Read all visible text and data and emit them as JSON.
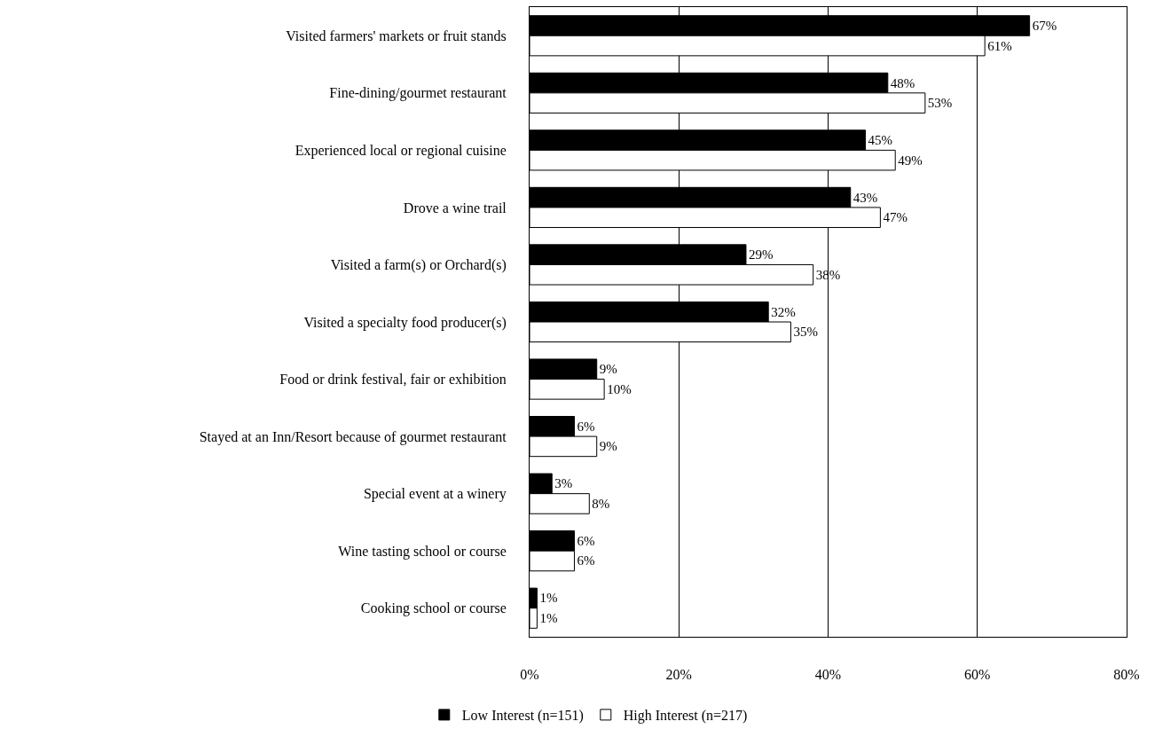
{
  "chart_data": {
    "type": "bar",
    "orientation": "horizontal",
    "categories": [
      "Visited farmers' markets or fruit stands",
      "Fine-dining/gourmet restaurant",
      "Experienced local or regional cuisine",
      "Drove a wine trail",
      "Visited a farm(s) or Orchard(s)",
      "Visited a specialty food producer(s)",
      "Food or drink festival, fair or exhibition",
      "Stayed at an Inn/Resort because of gourmet restaurant",
      "Special event at a winery",
      "Wine tasting school or course",
      "Cooking school or course"
    ],
    "series": [
      {
        "name": "Low Interest (n=151)",
        "color": "#000000",
        "values": [
          67,
          48,
          45,
          43,
          29,
          32,
          9,
          6,
          3,
          6,
          1
        ],
        "value_labels": [
          "67%",
          "48%",
          "45%",
          "43%",
          "29%",
          "32%",
          "9%",
          "6%",
          "3%",
          "6%",
          "1%"
        ]
      },
      {
        "name": "High Interest (n=217)",
        "color": "#ffffff",
        "values": [
          61,
          53,
          49,
          47,
          38,
          35,
          10,
          9,
          8,
          6,
          1
        ],
        "value_labels": [
          "61%",
          "53%",
          "49%",
          "47%",
          "38%",
          "35%",
          "10%",
          "9%",
          "8%",
          "6%",
          "1%"
        ]
      }
    ],
    "xlim": [
      0,
      80
    ],
    "xticks": [
      {
        "value": 0,
        "label": "0%"
      },
      {
        "value": 20,
        "label": "20%"
      },
      {
        "value": 40,
        "label": "40%"
      },
      {
        "value": 60,
        "label": "60%"
      },
      {
        "value": 80,
        "label": "80%"
      }
    ],
    "grid": "x",
    "legend": "bottom"
  }
}
